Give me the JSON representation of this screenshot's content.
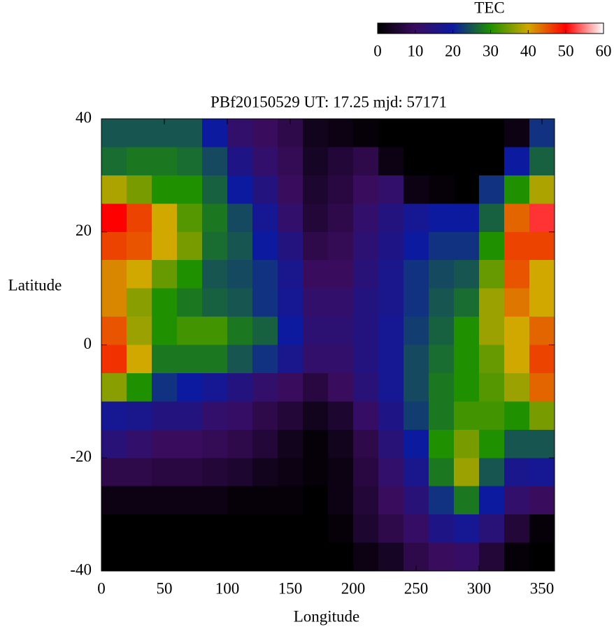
{
  "chart_data": {
    "type": "heatmap",
    "title": "PBf20150529  UT: 17.25  mjd: 57171",
    "xlabel": "Longitude",
    "ylabel": "Latitude",
    "colorbar_label": "TEC",
    "x": [
      10,
      30,
      50,
      70,
      90,
      110,
      130,
      150,
      170,
      190,
      210,
      230,
      250,
      270,
      290,
      310,
      330,
      350
    ],
    "y": [
      37.5,
      32.5,
      27.5,
      22.5,
      17.5,
      12.5,
      7.5,
      2.5,
      -2.5,
      -7.5,
      -12.5,
      -17.5,
      -22.5,
      -27.5,
      -32.5,
      -37.5
    ],
    "values": [
      [
        25,
        25,
        25,
        25,
        20,
        12,
        10,
        8,
        3,
        2,
        1,
        0,
        0,
        0,
        0,
        0,
        2,
        22
      ],
      [
        27,
        28,
        28,
        27,
        24,
        16,
        12,
        9,
        4,
        6,
        8,
        2,
        0,
        0,
        0,
        0,
        20,
        26
      ],
      [
        38,
        35,
        30,
        30,
        26,
        20,
        15,
        10,
        5,
        7,
        10,
        12,
        2,
        1,
        0,
        22,
        30,
        38
      ],
      [
        50,
        46,
        40,
        33,
        28,
        24,
        18,
        12,
        6,
        8,
        12,
        15,
        18,
        20,
        20,
        26,
        44,
        52
      ],
      [
        46,
        45,
        40,
        35,
        27,
        25,
        20,
        15,
        8,
        9,
        13,
        16,
        20,
        22,
        22,
        30,
        46,
        46
      ],
      [
        42,
        40,
        34,
        30,
        25,
        24,
        22,
        17,
        10,
        10,
        14,
        17,
        22,
        24,
        25,
        34,
        45,
        40
      ],
      [
        42,
        36,
        30,
        28,
        26,
        25,
        22,
        18,
        12,
        12,
        15,
        17,
        22,
        25,
        27,
        37,
        43,
        40
      ],
      [
        45,
        37,
        30,
        32,
        32,
        28,
        26,
        20,
        13,
        13,
        15,
        18,
        23,
        26,
        30,
        37,
        40,
        44
      ],
      [
        47,
        40,
        28,
        28,
        28,
        25,
        22,
        17,
        12,
        12,
        15,
        18,
        24,
        27,
        30,
        34,
        40,
        46
      ],
      [
        36,
        30,
        22,
        20,
        18,
        15,
        12,
        10,
        7,
        10,
        14,
        18,
        24,
        28,
        30,
        33,
        37,
        44
      ],
      [
        18,
        17,
        15,
        15,
        12,
        11,
        8,
        6,
        3,
        5,
        11,
        16,
        23,
        28,
        32,
        32,
        30,
        35
      ],
      [
        14,
        12,
        10,
        10,
        9,
        8,
        6,
        3,
        1,
        3,
        8,
        14,
        20,
        30,
        35,
        30,
        25,
        25
      ],
      [
        8,
        8,
        7,
        7,
        6,
        5,
        3,
        2,
        1,
        2,
        7,
        12,
        17,
        28,
        37,
        25,
        17,
        18
      ],
      [
        2,
        2,
        2,
        2,
        2,
        1,
        1,
        1,
        0,
        2,
        6,
        10,
        14,
        22,
        28,
        20,
        12,
        10
      ],
      [
        0,
        0,
        0,
        0,
        0,
        0,
        0,
        0,
        0,
        1,
        5,
        8,
        11,
        16,
        18,
        14,
        6,
        1
      ],
      [
        0,
        0,
        0,
        0,
        0,
        0,
        0,
        0,
        0,
        0,
        2,
        4,
        8,
        10,
        11,
        6,
        1,
        0
      ]
    ],
    "xlim": [
      0,
      360
    ],
    "xticks": [
      0,
      50,
      100,
      150,
      200,
      250,
      300,
      350
    ],
    "ylim": [
      -40,
      40
    ],
    "yticks": [
      -40,
      -20,
      0,
      20,
      40
    ],
    "clim": [
      0,
      60
    ],
    "cbticks": [
      0,
      10,
      20,
      30,
      40,
      50,
      60
    ],
    "colormap": [
      "#000000",
      "#3a0c5e",
      "#0c1aa0",
      "#1f9000",
      "#d0a800",
      "#ff0000",
      "#ffffff"
    ]
  }
}
